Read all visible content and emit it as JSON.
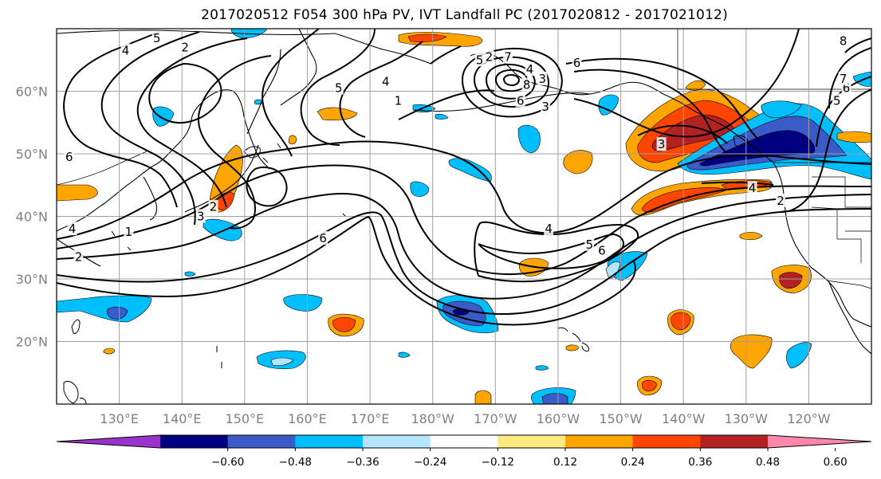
{
  "title": "2017020512 F054 300 hPa PV, IVT Landfall PC (2017020812 - 2017021012)",
  "colors": {
    "background": "#ffffff",
    "coast": "#000000",
    "grid": "#a0a0a0",
    "contour": "#000000"
  },
  "map": {
    "lon_min": 120,
    "lon_max": 250,
    "lat_min": 10,
    "lat_max": 70,
    "lat_ticks": [
      {
        "value": 20,
        "label": "20°N"
      },
      {
        "value": 30,
        "label": "30°N"
      },
      {
        "value": 40,
        "label": "40°N"
      },
      {
        "value": 50,
        "label": "50°N"
      },
      {
        "value": 60,
        "label": "60°N"
      }
    ],
    "lon_ticks": [
      {
        "value": 130,
        "label": "130°E"
      },
      {
        "value": 140,
        "label": "140°E"
      },
      {
        "value": 150,
        "label": "150°E"
      },
      {
        "value": 160,
        "label": "160°E"
      },
      {
        "value": 170,
        "label": "170°E"
      },
      {
        "value": 180,
        "label": "180°W"
      },
      {
        "value": 190,
        "label": "170°W"
      },
      {
        "value": 200,
        "label": "160°W"
      },
      {
        "value": 210,
        "label": "150°W"
      },
      {
        "value": 220,
        "label": "140°W"
      },
      {
        "value": 230,
        "label": "130°W"
      },
      {
        "value": 240,
        "label": "120°W"
      }
    ]
  },
  "colorbar": {
    "levels": [
      "−0.60",
      "−0.48",
      "−0.36",
      "−0.24",
      "−0.12",
      "0.12",
      "0.24",
      "0.36",
      "0.48",
      "0.60"
    ],
    "colors": [
      "#9933cc",
      "#000080",
      "#3a5bc8",
      "#00bfff",
      "#b3e5ff",
      "#ffffff",
      "#ffea80",
      "#ffa500",
      "#ff4500",
      "#b22222",
      "#ff88aa"
    ]
  },
  "pv_labels": [
    {
      "lon": 131.0,
      "lat": 66.5,
      "text": "4"
    },
    {
      "lon": 140.5,
      "lat": 67.0,
      "text": "2"
    },
    {
      "lon": 136.0,
      "lat": 68.5,
      "text": "5"
    },
    {
      "lon": 122.0,
      "lat": 49.5,
      "text": "6"
    },
    {
      "lon": 122.5,
      "lat": 38.0,
      "text": "4"
    },
    {
      "lon": 143.0,
      "lat": 40.0,
      "text": "3"
    },
    {
      "lon": 145.0,
      "lat": 41.5,
      "text": "2"
    },
    {
      "lon": 131.5,
      "lat": 37.5,
      "text": "1"
    },
    {
      "lon": 123.5,
      "lat": 33.5,
      "text": "2"
    },
    {
      "lon": 162.5,
      "lat": 36.5,
      "text": "6"
    },
    {
      "lon": 165.0,
      "lat": 60.5,
      "text": "5"
    },
    {
      "lon": 172.5,
      "lat": 61.5,
      "text": "4"
    },
    {
      "lon": 174.5,
      "lat": 58.5,
      "text": "1"
    },
    {
      "lon": 187.5,
      "lat": 65.0,
      "text": "5"
    },
    {
      "lon": 189.0,
      "lat": 65.5,
      "text": "2"
    },
    {
      "lon": 192.0,
      "lat": 65.5,
      "text": "7"
    },
    {
      "lon": 195.5,
      "lat": 63.5,
      "text": "4"
    },
    {
      "lon": 197.5,
      "lat": 62.0,
      "text": "3"
    },
    {
      "lon": 195.0,
      "lat": 61.0,
      "text": "8"
    },
    {
      "lon": 194.0,
      "lat": 58.5,
      "text": "6"
    },
    {
      "lon": 198.0,
      "lat": 57.5,
      "text": "3"
    },
    {
      "lon": 203.0,
      "lat": 64.5,
      "text": "6"
    },
    {
      "lon": 198.5,
      "lat": 38.0,
      "text": "4"
    },
    {
      "lon": 205.0,
      "lat": 35.5,
      "text": "5"
    },
    {
      "lon": 207.0,
      "lat": 34.5,
      "text": "6"
    },
    {
      "lon": 216.5,
      "lat": 51.5,
      "text": "3"
    },
    {
      "lon": 231.0,
      "lat": 44.5,
      "text": "4"
    },
    {
      "lon": 235.5,
      "lat": 42.5,
      "text": "2"
    },
    {
      "lon": 244.5,
      "lat": 58.5,
      "text": "5"
    },
    {
      "lon": 246.0,
      "lat": 60.5,
      "text": "6"
    },
    {
      "lon": 245.5,
      "lat": 62.0,
      "text": "7"
    },
    {
      "lon": 245.5,
      "lat": 68.0,
      "text": "8"
    }
  ]
}
